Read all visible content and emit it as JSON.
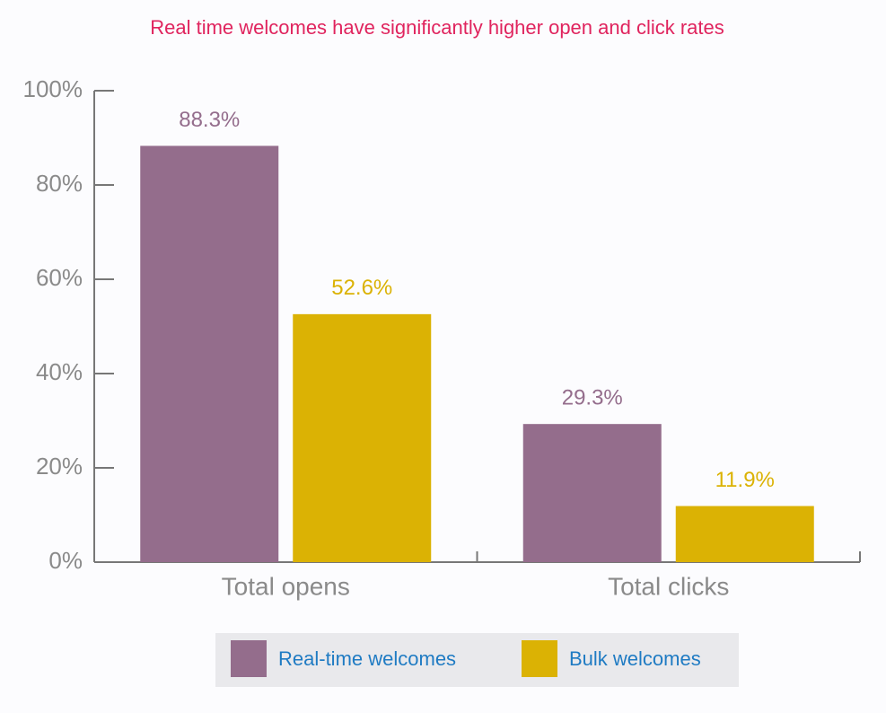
{
  "chart_data": {
    "type": "bar",
    "title": "Real time welcomes have significantly higher open and click rates",
    "categories": [
      "Total opens",
      "Total clicks"
    ],
    "series": [
      {
        "name": "Real-time welcomes",
        "color": "#946d8c",
        "values": [
          88.3,
          29.3
        ],
        "value_labels": [
          "88.3%",
          "29.3%"
        ]
      },
      {
        "name": "Bulk welcomes",
        "color": "#dbb204",
        "values": [
          52.6,
          11.9
        ],
        "value_labels": [
          "52.6%",
          "11.9%"
        ]
      }
    ],
    "ylim": [
      0,
      100
    ],
    "yticks": [
      {
        "value": 0,
        "label": "0%"
      },
      {
        "value": 20,
        "label": "20%"
      },
      {
        "value": 40,
        "label": "40%"
      },
      {
        "value": 60,
        "label": "60%"
      },
      {
        "value": 80,
        "label": "80%"
      },
      {
        "value": 100,
        "label": "100%"
      }
    ]
  }
}
